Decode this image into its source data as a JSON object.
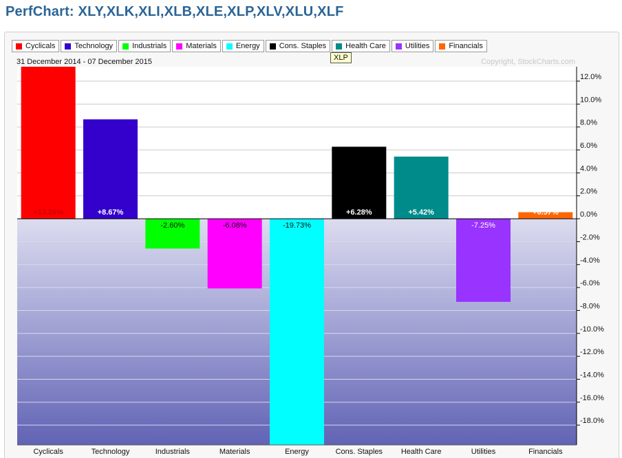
{
  "page": {
    "title": "PerfChart: XLY,XLK,XLI,XLB,XLE,XLP,XLV,XLU,XLF"
  },
  "header": {
    "date_range": "31 December 2014 - 07 December 2015",
    "copyright": "Copyright, StockCharts.com",
    "tooltip": "XLP"
  },
  "legend": [
    {
      "label": "Cyclicals",
      "color": "#ff0000"
    },
    {
      "label": "Technology",
      "color": "#3300cc"
    },
    {
      "label": "Industrials",
      "color": "#00ff00"
    },
    {
      "label": "Materials",
      "color": "#ff00ff"
    },
    {
      "label": "Energy",
      "color": "#00ffff"
    },
    {
      "label": "Cons. Staples",
      "color": "#000000"
    },
    {
      "label": "Health Care",
      "color": "#008b8b"
    },
    {
      "label": "Utilities",
      "color": "#9933ff"
    },
    {
      "label": "Financials",
      "color": "#ff6600"
    }
  ],
  "chart_data": {
    "type": "bar",
    "categories": [
      "Cyclicals",
      "Technology",
      "Industrials",
      "Materials",
      "Energy",
      "Cons. Staples",
      "Health Care",
      "Utilities",
      "Financials"
    ],
    "values": [
      13.26,
      8.67,
      -2.6,
      -6.08,
      -19.73,
      6.28,
      5.42,
      -7.25,
      0.57
    ],
    "data_labels": [
      "+13.26%",
      "+8.67%",
      "-2.60%",
      "-6.08%",
      "-19.73%",
      "+6.28%",
      "+5.42%",
      "-7.25%",
      "+0.57%"
    ],
    "colors": [
      "#ff0000",
      "#3300cc",
      "#00ff00",
      "#ff00ff",
      "#00ffff",
      "#000000",
      "#008b8b",
      "#9933ff",
      "#ff6600"
    ],
    "label_colors": [
      "#cc0000",
      "#ffffff",
      "#111111",
      "#111111",
      "#111111",
      "#ffffff",
      "#ffffff",
      "#ffffff",
      "#ffffff"
    ],
    "yticks": [
      12,
      10,
      8,
      6,
      4,
      2,
      0,
      -2,
      -4,
      -6,
      -8,
      -10,
      -12,
      -14,
      -16,
      -18
    ],
    "ytick_labels": [
      "12.0%",
      "10.0%",
      "8.0%",
      "6.0%",
      "4.0%",
      "2.0%",
      "0.0%",
      "-2.0%",
      "-4.0%",
      "-6.0%",
      "-8.0%",
      "-10.0%",
      "-12.0%",
      "-14.0%",
      "-16.0%",
      "-18.0%"
    ],
    "ylim": [
      -19.73,
      13.26
    ],
    "y_axis_position": "right",
    "grid": true,
    "legend_position": "top"
  }
}
